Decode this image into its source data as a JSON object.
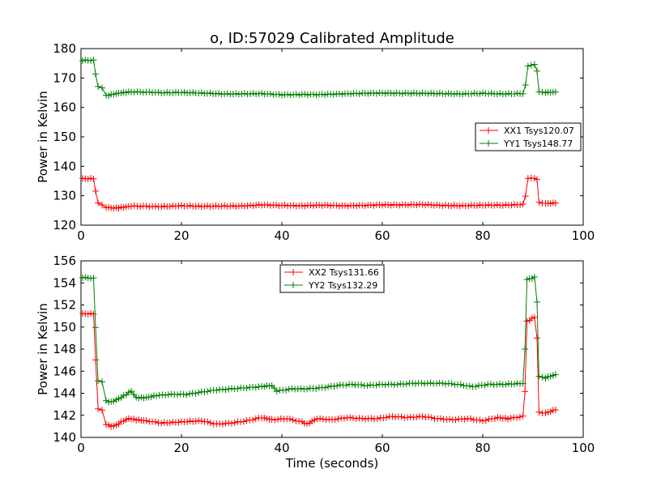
{
  "title": "o, ID:57029 Calibrated Amplitude",
  "chart_data": [
    {
      "type": "line",
      "title": "o, ID:57029 Calibrated Amplitude",
      "xlabel": "",
      "ylabel": "Power in Kelvin",
      "xlim": [
        0,
        100
      ],
      "ylim": [
        120,
        180
      ],
      "x_ticks": [
        "0",
        "20",
        "40",
        "60",
        "80",
        "100"
      ],
      "y_ticks": [
        "120",
        "130",
        "140",
        "150",
        "160",
        "170",
        "180"
      ],
      "grid": false,
      "legend_position": "center-right",
      "markers": "+",
      "series": [
        {
          "name": "XX1 Tsys120.07",
          "color": "#ff0000",
          "points": [
            [
              0.3,
              135.8
            ],
            [
              2.5,
              135.8
            ],
            [
              2.9,
              131.5
            ],
            [
              3.4,
              127.6
            ],
            [
              4.2,
              127.0
            ],
            [
              5.0,
              126.1
            ],
            [
              6.5,
              125.8
            ],
            [
              8,
              126.0
            ],
            [
              10,
              126.5
            ],
            [
              13,
              126.4
            ],
            [
              16,
              126.3
            ],
            [
              20,
              126.6
            ],
            [
              24,
              126.4
            ],
            [
              28,
              126.5
            ],
            [
              32,
              126.5
            ],
            [
              36,
              126.9
            ],
            [
              40,
              126.7
            ],
            [
              44,
              126.6
            ],
            [
              48,
              126.8
            ],
            [
              52,
              126.6
            ],
            [
              56,
              126.7
            ],
            [
              60,
              126.9
            ],
            [
              64,
              126.9
            ],
            [
              68,
              127.0
            ],
            [
              72,
              126.7
            ],
            [
              76,
              126.6
            ],
            [
              80,
              126.8
            ],
            [
              84,
              126.8
            ],
            [
              88,
              127.0
            ],
            [
              88.5,
              130.0
            ],
            [
              89,
              135.8
            ],
            [
              90.3,
              136.0
            ],
            [
              90.8,
              135.5
            ],
            [
              91.2,
              127.8
            ],
            [
              92.5,
              127.4
            ],
            [
              94.5,
              127.5
            ]
          ]
        },
        {
          "name": "YY1 Tsys148.77",
          "color": "#008000",
          "points": [
            [
              0.3,
              176.0
            ],
            [
              2.5,
              176.0
            ],
            [
              2.9,
              171.5
            ],
            [
              3.4,
              167.0
            ],
            [
              4.2,
              166.5
            ],
            [
              5.0,
              164.0
            ],
            [
              6.5,
              164.5
            ],
            [
              8,
              165.0
            ],
            [
              10,
              165.3
            ],
            [
              13,
              165.2
            ],
            [
              16,
              165.0
            ],
            [
              20,
              165.1
            ],
            [
              24,
              164.9
            ],
            [
              28,
              164.6
            ],
            [
              32,
              164.6
            ],
            [
              36,
              164.7
            ],
            [
              40,
              164.3
            ],
            [
              44,
              164.4
            ],
            [
              48,
              164.4
            ],
            [
              52,
              164.6
            ],
            [
              56,
              164.8
            ],
            [
              60,
              164.9
            ],
            [
              64,
              164.8
            ],
            [
              68,
              164.8
            ],
            [
              72,
              164.7
            ],
            [
              76,
              164.6
            ],
            [
              80,
              164.8
            ],
            [
              84,
              164.6
            ],
            [
              88,
              164.7
            ],
            [
              88.5,
              167.5
            ],
            [
              89,
              174.2
            ],
            [
              90.3,
              174.5
            ],
            [
              90.8,
              172.5
            ],
            [
              91.2,
              165.2
            ],
            [
              92.5,
              165.1
            ],
            [
              94.5,
              165.3
            ]
          ]
        }
      ]
    },
    {
      "type": "line",
      "title": "",
      "xlabel": "Time (seconds)",
      "ylabel": "Power in Kelvin",
      "xlim": [
        0,
        100
      ],
      "ylim": [
        140,
        156
      ],
      "x_ticks": [
        "0",
        "20",
        "40",
        "60",
        "80",
        "100"
      ],
      "y_ticks": [
        "140",
        "142",
        "144",
        "146",
        "148",
        "150",
        "152",
        "154",
        "156"
      ],
      "grid": false,
      "legend_position": "top-center",
      "markers": "+",
      "series": [
        {
          "name": "XX2 Tsys131.66",
          "color": "#ff0000",
          "points": [
            [
              0.3,
              151.2
            ],
            [
              2.5,
              151.2
            ],
            [
              2.9,
              147.0
            ],
            [
              3.4,
              142.6
            ],
            [
              4.2,
              142.5
            ],
            [
              5.0,
              141.2
            ],
            [
              6.0,
              141.0
            ],
            [
              7.0,
              141.1
            ],
            [
              8,
              141.4
            ],
            [
              9.5,
              141.7
            ],
            [
              11,
              141.6
            ],
            [
              13,
              141.5
            ],
            [
              16,
              141.3
            ],
            [
              20,
              141.4
            ],
            [
              24,
              141.5
            ],
            [
              27,
              141.2
            ],
            [
              30,
              141.3
            ],
            [
              33,
              141.5
            ],
            [
              36,
              141.8
            ],
            [
              38,
              141.6
            ],
            [
              41,
              141.7
            ],
            [
              44,
              141.4
            ],
            [
              45,
              141.2
            ],
            [
              47,
              141.7
            ],
            [
              50,
              141.6
            ],
            [
              53,
              141.8
            ],
            [
              56,
              141.7
            ],
            [
              59,
              141.7
            ],
            [
              62,
              141.9
            ],
            [
              65,
              141.8
            ],
            [
              68,
              141.9
            ],
            [
              71,
              141.7
            ],
            [
              74,
              141.6
            ],
            [
              77,
              141.7
            ],
            [
              80,
              141.5
            ],
            [
              83,
              141.8
            ],
            [
              85,
              141.7
            ],
            [
              88,
              141.9
            ],
            [
              88.4,
              144.2
            ],
            [
              88.8,
              150.5
            ],
            [
              90.3,
              150.9
            ],
            [
              90.8,
              149.0
            ],
            [
              91.2,
              142.3
            ],
            [
              92.5,
              142.2
            ],
            [
              94.5,
              142.5
            ]
          ]
        },
        {
          "name": "YY2 Tsys132.29",
          "color": "#008000",
          "points": [
            [
              0.3,
              154.5
            ],
            [
              2.5,
              154.4
            ],
            [
              2.9,
              150.0
            ],
            [
              3.4,
              145.1
            ],
            [
              4.2,
              145.0
            ],
            [
              5.0,
              143.3
            ],
            [
              6.0,
              143.2
            ],
            [
              7.5,
              143.5
            ],
            [
              9,
              143.9
            ],
            [
              10,
              144.2
            ],
            [
              11,
              143.6
            ],
            [
              13,
              143.6
            ],
            [
              15,
              143.8
            ],
            [
              18,
              143.9
            ],
            [
              21,
              143.9
            ],
            [
              24,
              144.1
            ],
            [
              27,
              144.3
            ],
            [
              30,
              144.4
            ],
            [
              33,
              144.5
            ],
            [
              36,
              144.6
            ],
            [
              38,
              144.7
            ],
            [
              39,
              144.2
            ],
            [
              42,
              144.4
            ],
            [
              45,
              144.4
            ],
            [
              48,
              144.5
            ],
            [
              51,
              144.7
            ],
            [
              54,
              144.8
            ],
            [
              57,
              144.7
            ],
            [
              60,
              144.8
            ],
            [
              63,
              144.8
            ],
            [
              66,
              144.9
            ],
            [
              69,
              144.9
            ],
            [
              72,
              144.9
            ],
            [
              75,
              144.8
            ],
            [
              78,
              144.6
            ],
            [
              81,
              144.8
            ],
            [
              84,
              144.8
            ],
            [
              88,
              144.9
            ],
            [
              88.4,
              148.0
            ],
            [
              88.8,
              154.3
            ],
            [
              90.3,
              154.5
            ],
            [
              90.8,
              152.3
            ],
            [
              91.2,
              145.5
            ],
            [
              92.5,
              145.4
            ],
            [
              94.5,
              145.7
            ]
          ]
        }
      ]
    }
  ]
}
